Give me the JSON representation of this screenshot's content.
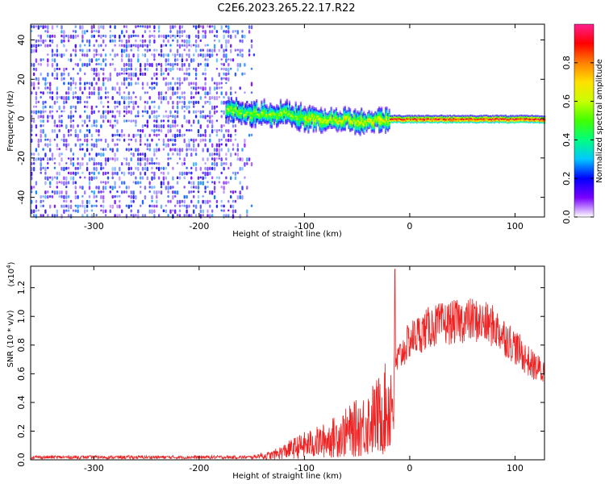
{
  "title": "C2E6.2023.265.22.17.R22",
  "chart_data": [
    {
      "type": "heatmap",
      "xlabel": "Height of straight line (km)",
      "ylabel": "Frequency (Hz)",
      "xlim": [
        -360,
        128
      ],
      "ylim": [
        -50,
        48
      ],
      "xticks": [
        -300,
        -200,
        -100,
        0,
        100
      ],
      "yticks": [
        -40,
        -20,
        0,
        20,
        40
      ],
      "colorbar": {
        "label": "Normalized spectral amplitude",
        "range": [
          0,
          1
        ],
        "ticks": [
          "0.0",
          "0.2",
          "0.4",
          "0.6",
          "0.8"
        ],
        "colormap": [
          "#ffffff",
          "#7a00ff",
          "#0000ff",
          "#00c8ff",
          "#00ff80",
          "#40ff00",
          "#c8ff00",
          "#ffe000",
          "#ff8000",
          "#ff0000",
          "#ff2090"
        ]
      },
      "regions": [
        {
          "desc": "noise",
          "x_range": [
            -360,
            -145
          ],
          "freq_range": [
            -50,
            48
          ],
          "amplitude": 0.15
        },
        {
          "desc": "signal",
          "x_range": [
            -175,
            128
          ],
          "center_freq": [
            [
              -175,
              5
            ],
            [
              -150,
              3
            ],
            [
              -120,
              3
            ],
            [
              -100,
              1
            ],
            [
              -80,
              0
            ],
            [
              -60,
              0
            ],
            [
              -40,
              -1
            ],
            [
              -20,
              0
            ],
            [
              0,
              0
            ],
            [
              128,
              0
            ]
          ],
          "amplitude": [
            0.5,
            1.0
          ]
        }
      ]
    },
    {
      "type": "line",
      "xlabel": "Height of straight line (km)",
      "ylabel": "SNR (10 * v/v)",
      "multiplier_label": "(x10",
      "multiplier_exp": "4",
      "xlim": [
        -360,
        128
      ],
      "ylim": [
        0,
        1.35
      ],
      "xticks": [
        -300,
        -200,
        -100,
        0,
        100
      ],
      "yticks": [
        "0.0",
        "0.2",
        "0.4",
        "0.6",
        "0.8",
        "1.0",
        "1.2"
      ],
      "series": [
        {
          "color": "#ee2222",
          "envelope": [
            [
              -360,
              0.02
            ],
            [
              -150,
              0.02
            ],
            [
              -130,
              0.05
            ],
            [
              -110,
              0.12
            ],
            [
              -100,
              0.15
            ],
            [
              -80,
              0.2
            ],
            [
              -60,
              0.28
            ],
            [
              -45,
              0.35
            ],
            [
              -30,
              0.45
            ],
            [
              -20,
              0.55
            ],
            [
              -15,
              0.7
            ],
            [
              0,
              0.9
            ],
            [
              20,
              1.0
            ],
            [
              40,
              1.03
            ],
            [
              60,
              1.05
            ],
            [
              80,
              1.0
            ],
            [
              100,
              0.85
            ],
            [
              115,
              0.72
            ],
            [
              128,
              0.65
            ]
          ],
          "peak": [
            -14,
            1.33
          ]
        }
      ]
    }
  ]
}
